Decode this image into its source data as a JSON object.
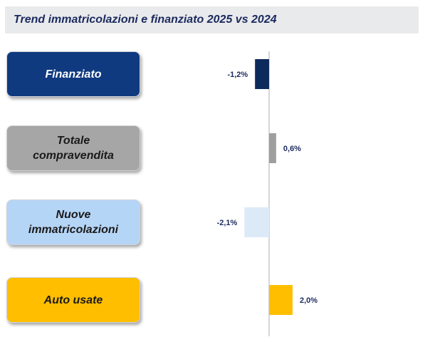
{
  "title": "Trend immatricolazioni e finanziato 2025 vs 2024",
  "categories": [
    {
      "label_lines": [
        "Finanziato"
      ],
      "box_color": "#0f3a80",
      "text_color": "#ffffff"
    },
    {
      "label_lines": [
        "Totale",
        "compravendita"
      ],
      "box_color": "#a6a6a6",
      "text_color": "#1a1a1a"
    },
    {
      "label_lines": [
        "Nuove",
        "immatricolazioni"
      ],
      "box_color": "#b5d5f7",
      "text_color": "#1a1a1a"
    },
    {
      "label_lines": [
        "Auto usate"
      ],
      "box_color": "#ffbe00",
      "text_color": "#1a1a1a"
    }
  ],
  "chart_data": {
    "type": "bar",
    "orientation": "horizontal",
    "categories": [
      "Finanziato",
      "Totale compravendita",
      "Nuove immatricolazioni",
      "Auto usate"
    ],
    "values": [
      -1.2,
      0.6,
      -2.1,
      2.0
    ],
    "data_labels": [
      "-1,2%",
      "0,6%",
      "-2,1%",
      "2,0%"
    ],
    "bar_colors": [
      "#0d2a5c",
      "#9f9f9f",
      "#dce9f7",
      "#ffbe00"
    ],
    "label_color": "#1b2a5e",
    "grid": false
  }
}
